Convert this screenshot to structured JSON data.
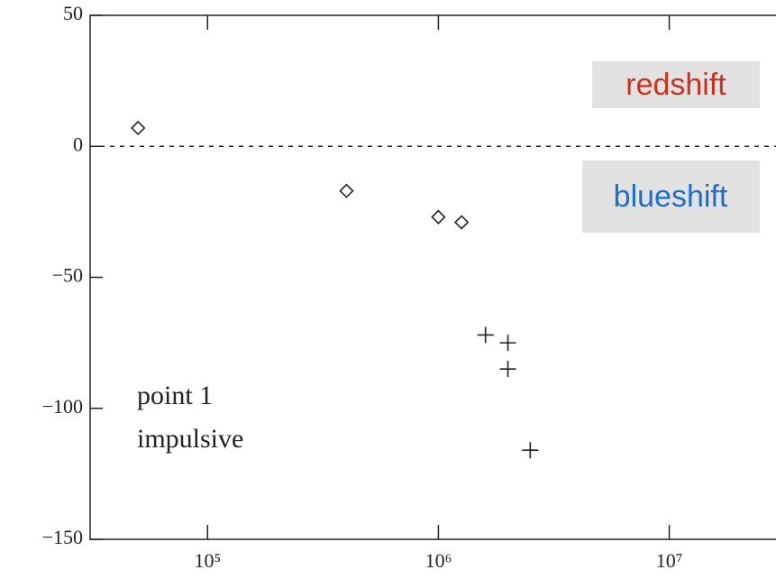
{
  "chart_data": {
    "type": "scatter",
    "xscale": "log",
    "xlim": [
      31000,
      29000000
    ],
    "ylim": [
      -150,
      50
    ],
    "xticks": [
      {
        "value": 100000,
        "label": "10⁵"
      },
      {
        "value": 1000000,
        "label": "10⁶"
      },
      {
        "value": 10000000,
        "label": "10⁷"
      }
    ],
    "yticks": [
      {
        "value": 50,
        "label": "50"
      },
      {
        "value": 0,
        "label": "0"
      },
      {
        "value": -50,
        "label": "−50"
      },
      {
        "value": -100,
        "label": "−100"
      },
      {
        "value": -150,
        "label": "−150"
      }
    ],
    "hline": 0,
    "series": [
      {
        "marker": "diamond",
        "color": "#222222",
        "x": [
          50000,
          400000,
          1000000,
          1260000
        ],
        "values": [
          7,
          -17,
          -27,
          -29
        ]
      },
      {
        "marker": "plus",
        "color": "#222222",
        "x": [
          1600000,
          2000000,
          2000000,
          2500000
        ],
        "values": [
          -72,
          -75,
          -85,
          -116
        ]
      }
    ],
    "annotations": {
      "point": "point 1",
      "phase": "impulsive",
      "red": "redshift",
      "blue": "blueshift"
    },
    "annotation_colors": {
      "red": "#c8321e",
      "blue": "#1e6ec8",
      "box": "#e2e2e2"
    }
  }
}
